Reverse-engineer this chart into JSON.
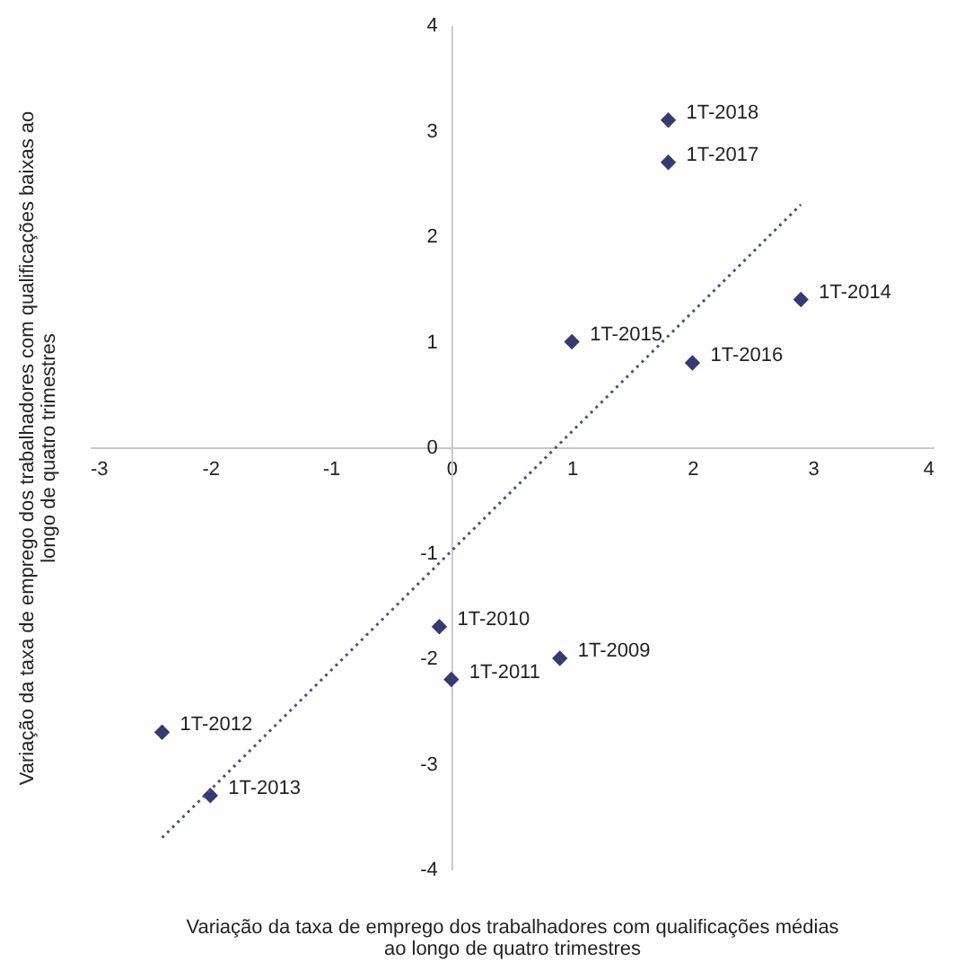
{
  "chart_data": {
    "type": "scatter",
    "xlabel": "Variação da taxa de emprego dos trabalhadores com qualificações médias ao longo de quatro trimestres",
    "ylabel": "Variação da taxa de emprego dos trabalhadores com qualificações baixas ao longo de quatro trimestres",
    "xlim": [
      -3,
      4
    ],
    "xticks": [
      -3,
      -2,
      -1,
      0,
      1,
      2,
      3,
      4
    ],
    "ylim": [
      -4,
      4
    ],
    "yticks": [
      -4,
      -3,
      -2,
      -1,
      0,
      1,
      2,
      3,
      4
    ],
    "grid": false,
    "series": [
      {
        "color": "#353a70",
        "marker": "diamond",
        "x": [
          0.9,
          -0.1,
          0.0,
          -2.4,
          -2.0,
          2.9,
          1.0,
          2.0,
          1.8,
          1.8
        ],
        "values": [
          -2.0,
          -1.7,
          -2.2,
          -2.7,
          -3.3,
          1.4,
          1.0,
          0.8,
          2.7,
          3.1
        ]
      },
      {
        "type": "line",
        "color": "#4a4f8a",
        "line_style": "dotted",
        "marker": "none",
        "x": [
          -2.4,
          2.9
        ],
        "values": [
          -3.7,
          2.3
        ]
      }
    ],
    "annotations": [
      {
        "text": "1T-2009",
        "x": 0.9,
        "y": -2.0
      },
      {
        "text": "1T-2010",
        "x": -0.1,
        "y": -1.7
      },
      {
        "text": "1T-2011",
        "x": 0.0,
        "y": -2.2
      },
      {
        "text": "1T-2012",
        "x": -2.4,
        "y": -2.7
      },
      {
        "text": "1T-2013",
        "x": -2.0,
        "y": -3.3
      },
      {
        "text": "1T-2014",
        "x": 2.9,
        "y": 1.4
      },
      {
        "text": "1T-2015",
        "x": 1.0,
        "y": 1.0
      },
      {
        "text": "1T-2016",
        "x": 2.0,
        "y": 0.8
      },
      {
        "text": "1T-2017",
        "x": 1.8,
        "y": 2.7
      },
      {
        "text": "1T-2018",
        "x": 1.8,
        "y": 3.1
      }
    ]
  }
}
